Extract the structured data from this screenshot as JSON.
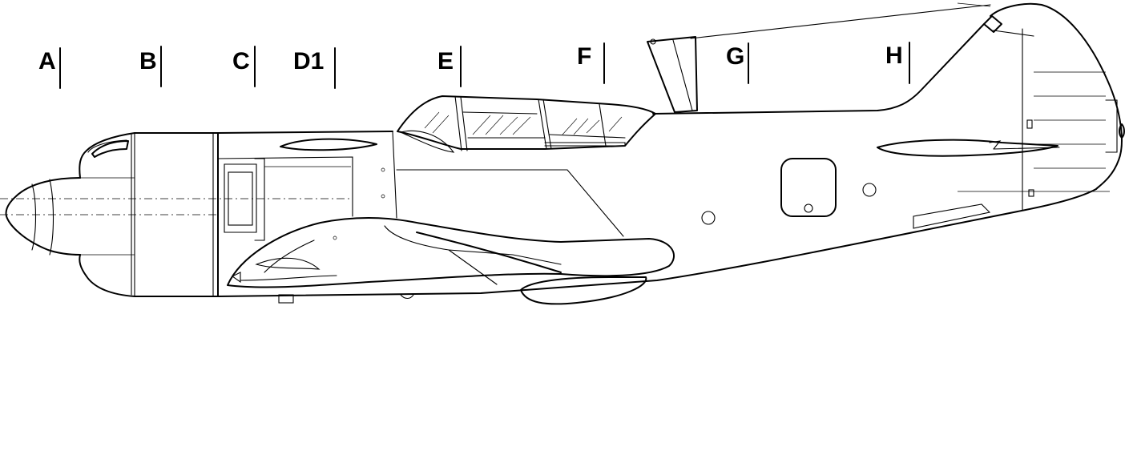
{
  "diagram": {
    "stations": [
      {
        "id": "A",
        "label": "A"
      },
      {
        "id": "B",
        "label": "B"
      },
      {
        "id": "C",
        "label": "C"
      },
      {
        "id": "D1",
        "label": "D1"
      },
      {
        "id": "E",
        "label": "E"
      },
      {
        "id": "F",
        "label": "F"
      },
      {
        "id": "G",
        "label": "G"
      },
      {
        "id": "H",
        "label": "H"
      }
    ]
  }
}
